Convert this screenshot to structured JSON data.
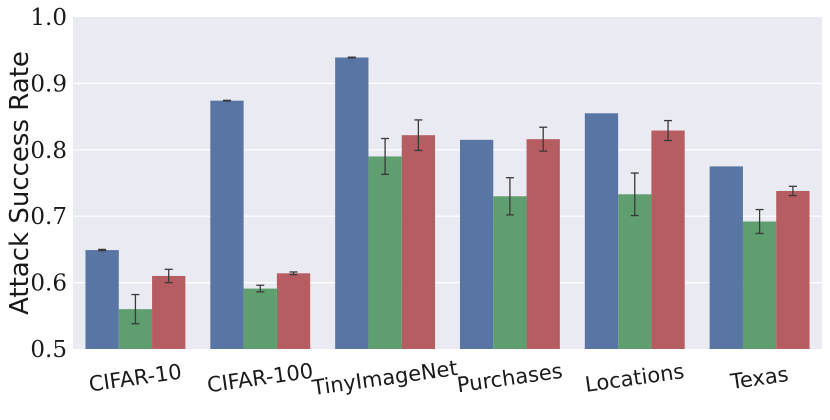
{
  "chart_data": {
    "type": "bar",
    "title": "",
    "xlabel": "",
    "ylabel": "Attack Success Rate",
    "ylim": [
      0.5,
      1.0
    ],
    "yticks": [
      "0.5",
      "0.6",
      "0.7",
      "0.8",
      "0.9",
      "1.0"
    ],
    "categories": [
      "CIFAR-10",
      "CIFAR-100",
      "TinyImageNet",
      "Purchases",
      "Locations",
      "Texas"
    ],
    "grid": true,
    "legend": "none",
    "background_color": "#EAEAF2",
    "series": [
      {
        "color": "#5975A4",
        "values": [
          0.649,
          0.874,
          0.939,
          0.815,
          0.855,
          0.775
        ],
        "errors": [
          0.001,
          0.0005,
          0.0005,
          0.0,
          0.0,
          0.0
        ]
      },
      {
        "color": "#5F9E6E",
        "values": [
          0.56,
          0.591,
          0.79,
          0.73,
          0.733,
          0.692
        ],
        "errors": [
          0.022,
          0.005,
          0.027,
          0.028,
          0.032,
          0.018
        ]
      },
      {
        "color": "#B55D60",
        "values": [
          0.61,
          0.614,
          0.822,
          0.816,
          0.829,
          0.738
        ],
        "errors": [
          0.01,
          0.002,
          0.023,
          0.018,
          0.015,
          0.007
        ]
      }
    ]
  }
}
